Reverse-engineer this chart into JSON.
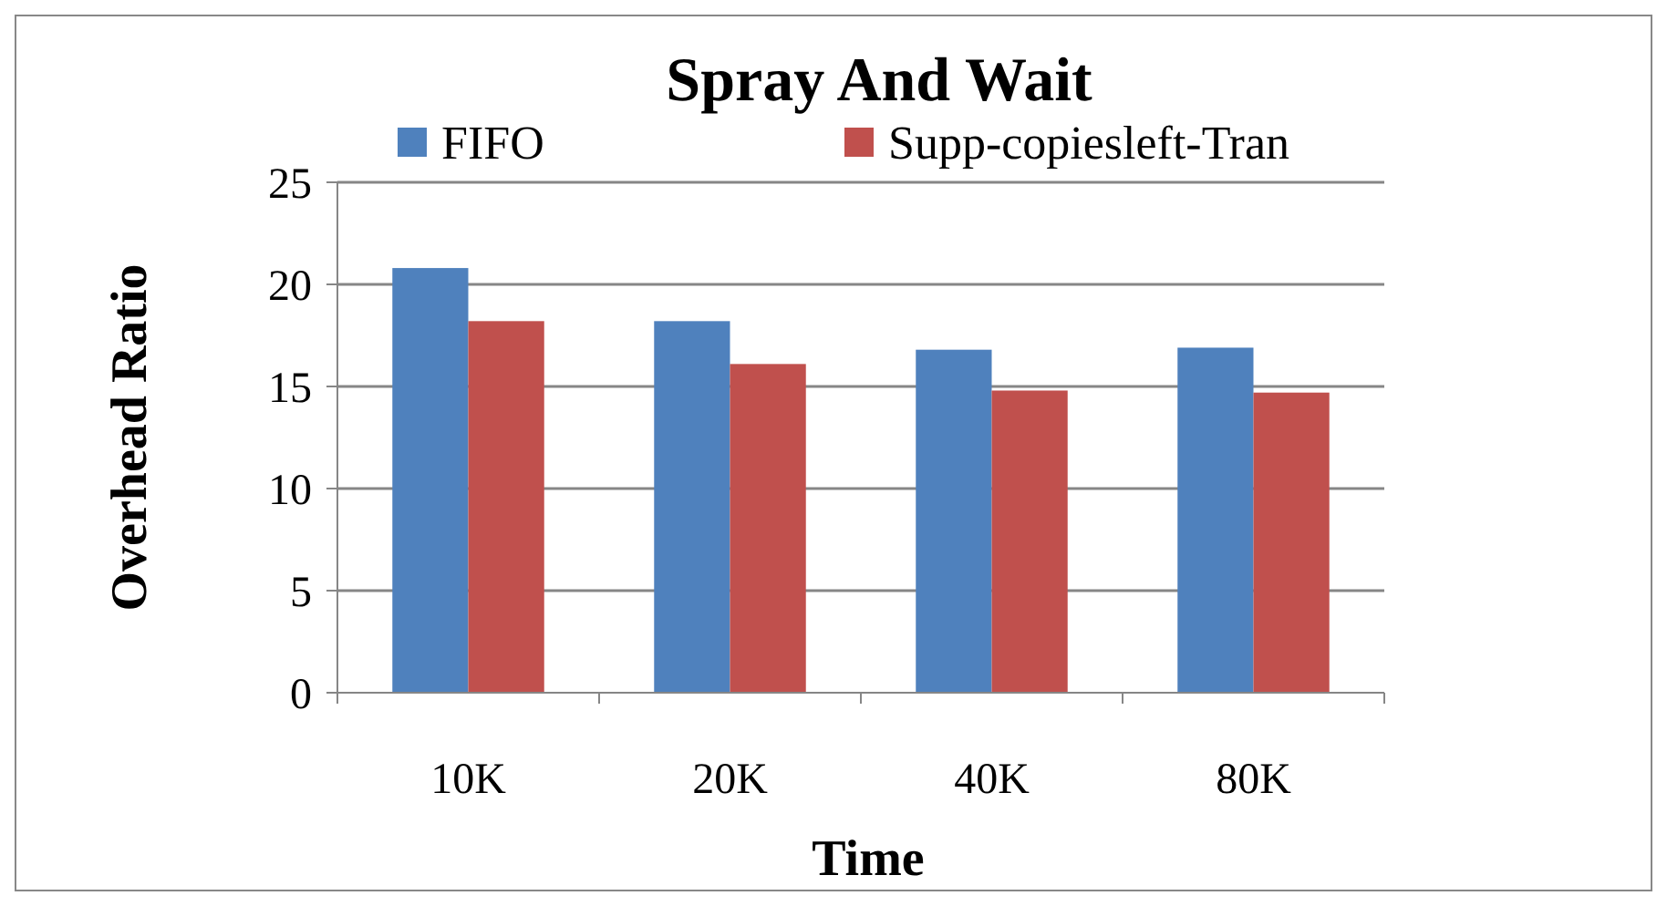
{
  "chart_data": {
    "type": "bar",
    "title": "Spray And Wait",
    "xlabel": "Time",
    "ylabel": "Overhead Ratio",
    "categories": [
      "10K",
      "20K",
      "40K",
      "80K"
    ],
    "series": [
      {
        "name": "FIFO",
        "color": "#4f81bd",
        "values": [
          20.8,
          18.2,
          16.8,
          16.9
        ]
      },
      {
        "name": "Supp-copiesleft-Tran",
        "color": "#c0504d",
        "values": [
          18.2,
          16.1,
          14.8,
          14.7
        ]
      }
    ],
    "ylim": [
      0,
      25
    ],
    "yticks": [
      0,
      5,
      10,
      15,
      20,
      25
    ],
    "grid": "y",
    "legend": "top"
  }
}
